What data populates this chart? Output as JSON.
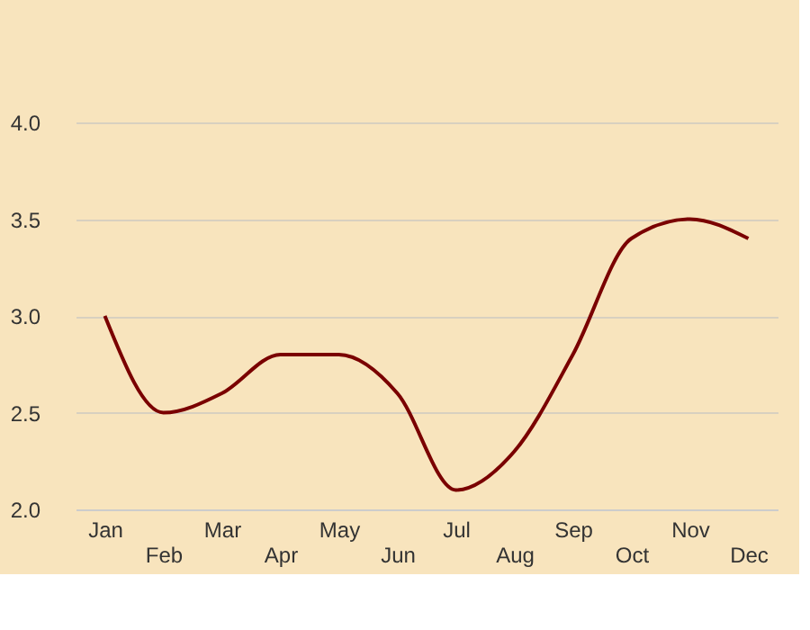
{
  "chart_data": {
    "type": "line",
    "categories": [
      "Jan",
      "Feb",
      "Mar",
      "Apr",
      "May",
      "Jun",
      "Jul",
      "Aug",
      "Sep",
      "Oct",
      "Nov",
      "Dec"
    ],
    "series": [
      {
        "color": "#7a0000",
        "values": [
          3.0,
          2.5,
          2.6,
          2.8,
          2.8,
          2.6,
          2.1,
          2.3,
          2.8,
          3.4,
          3.5,
          3.4
        ]
      }
    ],
    "ylim": [
      2.0,
      4.0
    ],
    "yticks": [
      {
        "value": 2.0,
        "label": "2.0"
      },
      {
        "value": 2.5,
        "label": "2.5"
      },
      {
        "value": 3.0,
        "label": "3.0"
      },
      {
        "value": 3.5,
        "label": "3.5"
      },
      {
        "value": 4.0,
        "label": "4.0"
      }
    ],
    "grid": "y",
    "marker": "none",
    "line_style": "solid"
  }
}
